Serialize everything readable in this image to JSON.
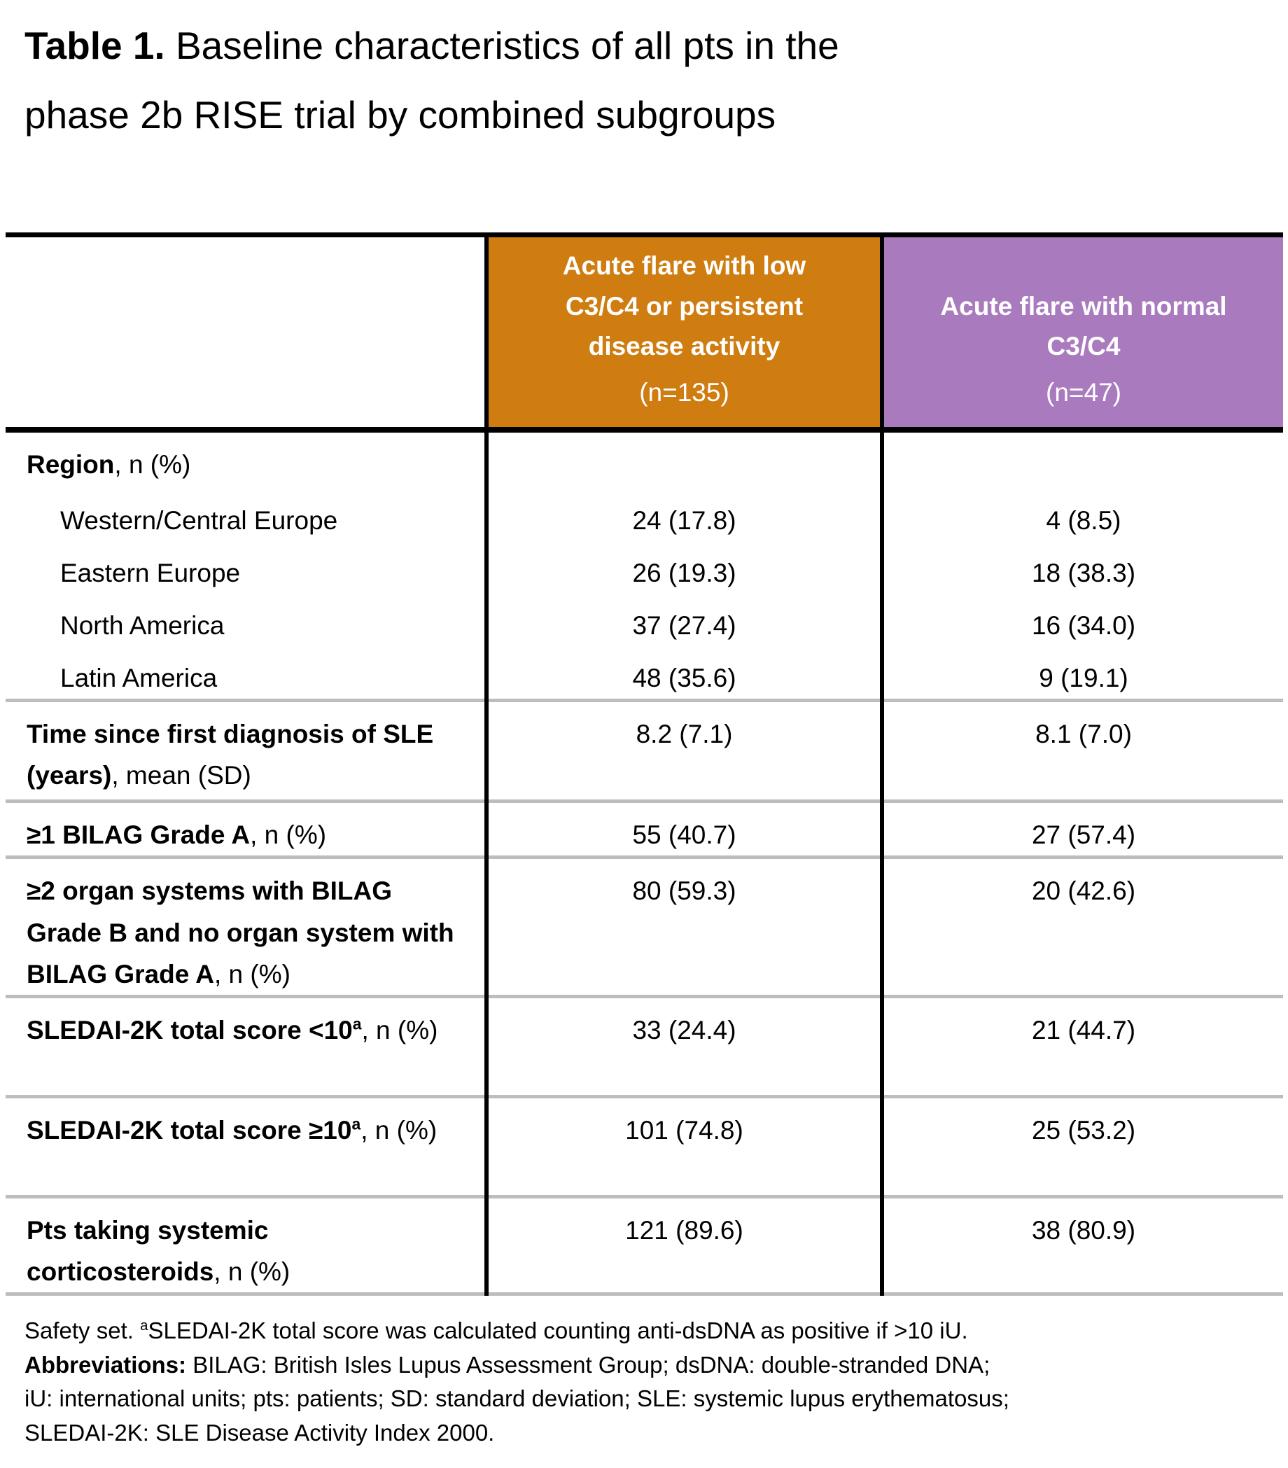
{
  "title": {
    "bold": "Table 1.",
    "line1_rest": " Baseline characteristics of all pts in the",
    "line2": "phase 2b RISE trial by combined subgroups"
  },
  "table": {
    "columns": [
      {
        "label": "Acute flare with low C3/C4 or persistent disease activity",
        "n": "(n=135)",
        "color": "#CF7C10"
      },
      {
        "label": "Acute flare with normal C3/C4",
        "n": "(n=47)",
        "color": "#A97BBE"
      }
    ],
    "rows": [
      {
        "bold": "Region",
        "rest": ", n (%)",
        "values": [
          "",
          ""
        ]
      },
      {
        "label": "Western/Central Europe",
        "values": [
          "24 (17.8)",
          "4 (8.5)"
        ]
      },
      {
        "label": "Eastern Europe",
        "values": [
          "26 (19.3)",
          "18 (38.3)"
        ]
      },
      {
        "label": "North America",
        "values": [
          "37 (27.4)",
          "16 (34.0)"
        ]
      },
      {
        "label": "Latin America",
        "values": [
          "48 (35.6)",
          "9 (19.1)"
        ]
      },
      {
        "bold": "Time since first diagnosis of SLE (years)",
        "rest": ", mean (SD)",
        "values": [
          "8.2 (7.1)",
          "8.1 (7.0)"
        ]
      },
      {
        "bold": "≥1 BILAG Grade A",
        "rest": ", n (%)",
        "values": [
          "55 (40.7)",
          "27 (57.4)"
        ]
      },
      {
        "bold": "≥2 organ systems with BILAG Grade B and no organ system with BILAG Grade A",
        "rest": ", n (%)",
        "values": [
          "80 (59.3)",
          "20 (42.6)"
        ]
      },
      {
        "bold": "SLEDAI-2K total score <10",
        "sup": "a",
        "rest": ", n (%)",
        "values": [
          "33 (24.4)",
          "21 (44.7)"
        ]
      },
      {
        "bold": "SLEDAI-2K total score ≥10",
        "sup": "a",
        "rest": ", n (%)",
        "values": [
          "101 (74.8)",
          "25 (53.2)"
        ]
      },
      {
        "bold": "Pts taking systemic corticosteroids",
        "rest": ", n (%)",
        "values": [
          "121 (89.6)",
          "38 (80.9)"
        ]
      }
    ]
  },
  "footnote": {
    "line1_prefix": "Safety set. ",
    "line1_sup": "a",
    "line1_rest": "SLEDAI-2K total score was calculated counting anti-dsDNA as positive if >10 iU.",
    "abbrev_bold": "Abbreviations:",
    "abbrev_rest": " BILAG: British Isles Lupus Assessment Group; dsDNA: double-stranded DNA;",
    "line3": "iU: international units; pts: patients; SD: standard deviation; SLE: systemic lupus erythematosus;",
    "line4": "SLEDAI-2K: SLE Disease Activity Index 2000."
  },
  "colors": {
    "header_orange": "#CF7C10",
    "header_purple": "#A97BBE",
    "separator_gray": "#BDBDBD",
    "border_black": "#000000",
    "header_text": "#FFFFFF"
  }
}
